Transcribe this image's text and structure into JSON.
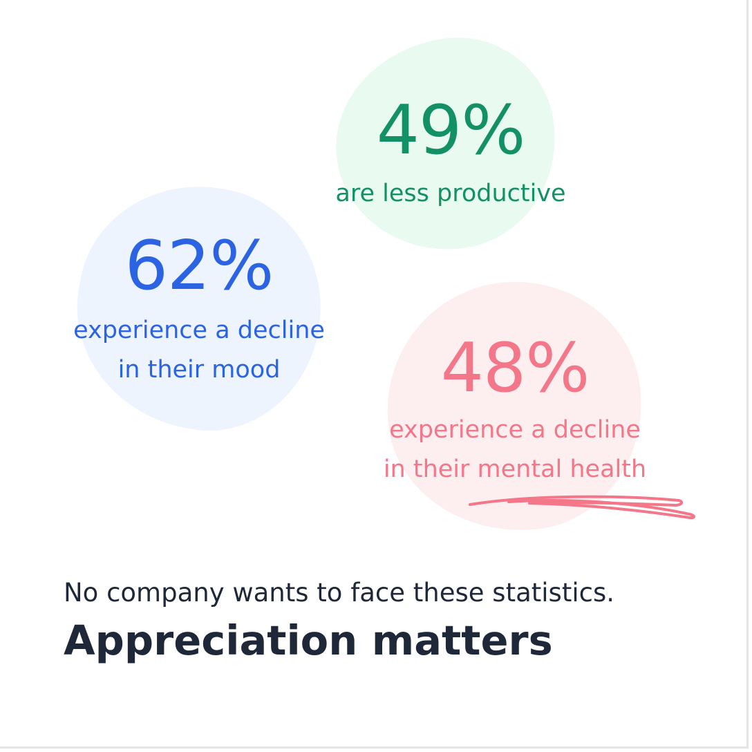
{
  "stats": [
    {
      "percent": "49%",
      "lines": [
        "are less productive"
      ],
      "color": "#139066"
    },
    {
      "percent": "62%",
      "lines": [
        "experience a decline",
        "in their mood"
      ],
      "color": "#2b63e3"
    },
    {
      "percent": "48%",
      "lines": [
        "experience a decline",
        "in their mental health"
      ],
      "color": "#f37689"
    }
  ],
  "footer": {
    "subtitle": "No company wants to face these statistics.",
    "headline": "Appreciation matters"
  }
}
